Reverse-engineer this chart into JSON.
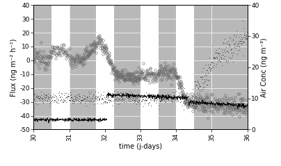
{
  "xlim": [
    30,
    36
  ],
  "ylim_left": [
    -50,
    40
  ],
  "ylim_right": [
    0,
    40
  ],
  "xticks": [
    30,
    31,
    32,
    33,
    34,
    35,
    36
  ],
  "yticks_left": [
    -50,
    -40,
    -30,
    -20,
    -10,
    0,
    10,
    20,
    30,
    40
  ],
  "yticks_right": [
    0,
    10,
    20,
    30,
    40
  ],
  "xlabel": "time (j-days)",
  "ylabel_left": "Flux (ng m⁻² h⁻¹)",
  "ylabel_right": "Air Conc (ng m⁻³)",
  "gray_bands": [
    [
      30.0,
      30.5
    ],
    [
      31.0,
      31.75
    ],
    [
      32.25,
      33.0
    ],
    [
      33.5,
      34.0
    ],
    [
      34.5,
      36.0
    ]
  ],
  "gray_color": "#b8b8b8",
  "background_color": "#ffffff",
  "grid_color": "#ffffff",
  "flux_color": "#666666",
  "inlet_color": "#333333",
  "line_color": "#000000",
  "flux_markersize": 2.5,
  "inlet_markersize": 1.5,
  "title_fontsize": 7,
  "axis_fontsize": 7,
  "tick_fontsize": 6.5,
  "legend_fontsize": 6
}
